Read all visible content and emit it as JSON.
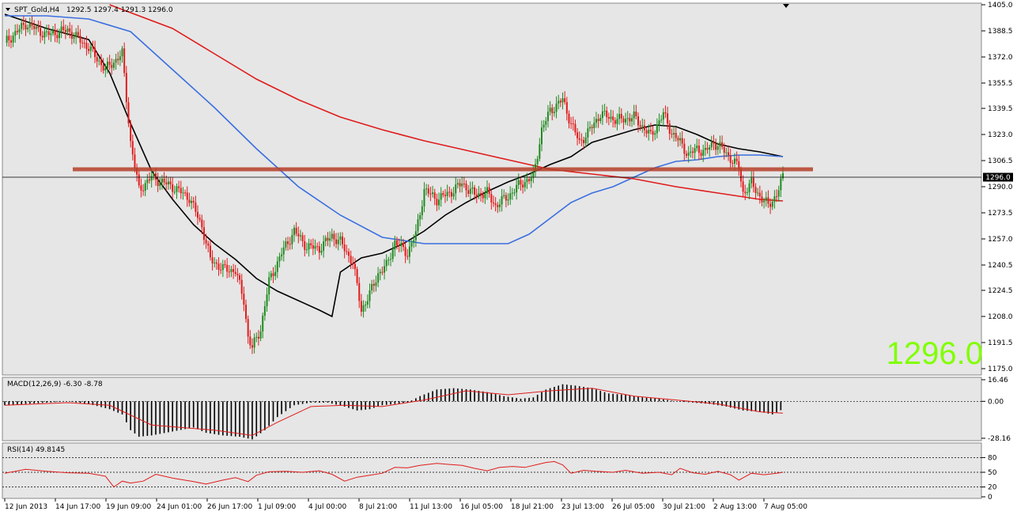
{
  "header": {
    "symbol": "SPT_Gold,H4",
    "ohlc": "1292.5 1297.4 1291.3 1296.0"
  },
  "price_big": "1296.0",
  "current_price_label": "1296.0",
  "colors": {
    "background": "#ffffff",
    "plot_bg": "#e6e6e6",
    "bull": "#1f8a1f",
    "bear": "#e01b1b",
    "ma_short": "#000000",
    "ma_mid": "#3b6fe0",
    "ma_long": "#e01b1b",
    "resistance": "#b5402a",
    "big_price": "#80ff00"
  },
  "macd": {
    "label": "MACD(12,26,9) -6.30 -8.78",
    "ticks": [
      "16.46",
      "0.00",
      "-28.16"
    ]
  },
  "rsi": {
    "label": "RSI(14) 49.8145",
    "ticks": [
      "80",
      "50",
      "20",
      "0"
    ]
  },
  "chart_data": [
    {
      "type": "candlestick",
      "title": "SPT_Gold,H4",
      "x_tick_labels": [
        "12 Jun 2013",
        "14 Jun 17:00",
        "19 Jun 09:00",
        "24 Jun 01:00",
        "26 Jun 17:00",
        "1 Jul 09:00",
        "4 Jul 00:00",
        "8 Jul 21:00",
        "11 Jul 13:00",
        "16 Jul 05:00",
        "18 Jul 21:00",
        "23 Jul 13:00",
        "26 Jul 05:00",
        "30 Jul 21:00",
        "2 Aug 13:00",
        "7 Aug 05:00"
      ],
      "y_tick_labels": [
        "1405.0",
        "1388.5",
        "1372.0",
        "1355.5",
        "1339.5",
        "1323.0",
        "1306.5",
        "1290.0",
        "1273.5",
        "1257.0",
        "1240.5",
        "1224.5",
        "1208.0",
        "1191.5",
        "1175.0"
      ],
      "ylim": [
        1173,
        1405
      ],
      "current_price": 1296.0,
      "resistance_level": 1301.0,
      "price_path": [
        [
          0,
          1381
        ],
        [
          10,
          1393
        ],
        [
          20,
          1386
        ],
        [
          30,
          1389
        ],
        [
          40,
          1378
        ],
        [
          48,
          1364
        ],
        [
          56,
          1374
        ],
        [
          60,
          1318
        ],
        [
          64,
          1288
        ],
        [
          70,
          1296
        ],
        [
          80,
          1290
        ],
        [
          88,
          1283
        ],
        [
          94,
          1265
        ],
        [
          98,
          1244
        ],
        [
          104,
          1238
        ],
        [
          110,
          1237
        ],
        [
          114,
          1218
        ],
        [
          116,
          1195
        ],
        [
          118,
          1188
        ],
        [
          122,
          1200
        ],
        [
          126,
          1230
        ],
        [
          132,
          1248
        ],
        [
          138,
          1262
        ],
        [
          144,
          1252
        ],
        [
          150,
          1251
        ],
        [
          156,
          1259
        ],
        [
          160,
          1255
        ],
        [
          166,
          1242
        ],
        [
          170,
          1212
        ],
        [
          174,
          1222
        ],
        [
          178,
          1235
        ],
        [
          182,
          1240
        ],
        [
          186,
          1255
        ],
        [
          192,
          1248
        ],
        [
          196,
          1260
        ],
        [
          200,
          1288
        ],
        [
          206,
          1282
        ],
        [
          212,
          1286
        ],
        [
          218,
          1292
        ],
        [
          224,
          1285
        ],
        [
          230,
          1286
        ],
        [
          234,
          1278
        ],
        [
          240,
          1284
        ],
        [
          246,
          1292
        ],
        [
          252,
          1296
        ],
        [
          256,
          1326
        ],
        [
          260,
          1338
        ],
        [
          266,
          1345
        ],
        [
          270,
          1330
        ],
        [
          274,
          1318
        ],
        [
          278,
          1324
        ],
        [
          284,
          1336
        ],
        [
          292,
          1332
        ],
        [
          300,
          1334
        ],
        [
          308,
          1322
        ],
        [
          314,
          1336
        ],
        [
          318,
          1324
        ],
        [
          322,
          1318
        ],
        [
          326,
          1310
        ],
        [
          330,
          1314
        ],
        [
          334,
          1312
        ],
        [
          338,
          1318
        ],
        [
          342,
          1314
        ],
        [
          346,
          1308
        ],
        [
          350,
          1302
        ],
        [
          352,
          1286
        ],
        [
          356,
          1292
        ],
        [
          360,
          1284
        ],
        [
          364,
          1278
        ],
        [
          368,
          1285
        ],
        [
          371,
          1296
        ]
      ],
      "moving_averages": [
        {
          "color": "#000000",
          "points": [
            [
              0,
              1399
            ],
            [
              20,
              1390
            ],
            [
              40,
              1383
            ],
            [
              50,
              1362
            ],
            [
              60,
              1330
            ],
            [
              70,
              1300
            ],
            [
              80,
              1282
            ],
            [
              90,
              1266
            ],
            [
              100,
              1254
            ],
            [
              110,
              1244
            ],
            [
              120,
              1232
            ],
            [
              130,
              1224
            ],
            [
              140,
              1218
            ],
            [
              150,
              1212
            ],
            [
              156,
              1208
            ],
            [
              160,
              1236
            ],
            [
              170,
              1245
            ],
            [
              180,
              1248
            ],
            [
              190,
              1254
            ],
            [
              200,
              1262
            ],
            [
              210,
              1272
            ],
            [
              220,
              1280
            ],
            [
              230,
              1287
            ],
            [
              240,
              1293
            ],
            [
              250,
              1298
            ],
            [
              260,
              1304
            ],
            [
              270,
              1309
            ],
            [
              280,
              1318
            ],
            [
              290,
              1322
            ],
            [
              300,
              1326
            ],
            [
              310,
              1329
            ],
            [
              320,
              1328
            ],
            [
              330,
              1323
            ],
            [
              340,
              1317
            ],
            [
              350,
              1314
            ],
            [
              360,
              1312
            ],
            [
              371,
              1309
            ]
          ]
        },
        {
          "color": "#3b6fe0",
          "points": [
            [
              0,
              1398
            ],
            [
              20,
              1398
            ],
            [
              40,
              1396
            ],
            [
              60,
              1388
            ],
            [
              80,
              1364
            ],
            [
              100,
              1340
            ],
            [
              120,
              1314
            ],
            [
              140,
              1290
            ],
            [
              160,
              1272
            ],
            [
              180,
              1258
            ],
            [
              200,
              1254
            ],
            [
              220,
              1254
            ],
            [
              240,
              1254
            ],
            [
              250,
              1260
            ],
            [
              260,
              1270
            ],
            [
              270,
              1280
            ],
            [
              280,
              1286
            ],
            [
              290,
              1290
            ],
            [
              300,
              1296
            ],
            [
              310,
              1302
            ],
            [
              320,
              1306
            ],
            [
              330,
              1307
            ],
            [
              340,
              1309
            ],
            [
              350,
              1310
            ],
            [
              360,
              1310
            ],
            [
              371,
              1309
            ]
          ]
        },
        {
          "color": "#e01b1b",
          "points": [
            [
              50,
              1405
            ],
            [
              80,
              1390
            ],
            [
              100,
              1374
            ],
            [
              120,
              1358
            ],
            [
              140,
              1345
            ],
            [
              160,
              1334
            ],
            [
              180,
              1326
            ],
            [
              200,
              1319
            ],
            [
              220,
              1313
            ],
            [
              240,
              1307
            ],
            [
              260,
              1301
            ],
            [
              280,
              1298
            ],
            [
              300,
              1295
            ],
            [
              320,
              1290
            ],
            [
              340,
              1286
            ],
            [
              360,
              1282
            ],
            [
              371,
              1281
            ]
          ]
        }
      ]
    },
    {
      "type": "histogram",
      "title": "MACD(12,26,9)",
      "main_value": -6.3,
      "signal_value": -8.78,
      "ylim": [
        -28.16,
        16.46
      ],
      "histogram": [
        [
          0,
          -3
        ],
        [
          10,
          -2
        ],
        [
          20,
          -1
        ],
        [
          30,
          0
        ],
        [
          40,
          -2
        ],
        [
          50,
          -6
        ],
        [
          56,
          -10
        ],
        [
          60,
          -22
        ],
        [
          64,
          -27
        ],
        [
          70,
          -26
        ],
        [
          80,
          -23
        ],
        [
          90,
          -20
        ],
        [
          96,
          -24
        ],
        [
          104,
          -26
        ],
        [
          112,
          -27
        ],
        [
          118,
          -29
        ],
        [
          124,
          -22
        ],
        [
          130,
          -12
        ],
        [
          138,
          -3
        ],
        [
          146,
          -1
        ],
        [
          154,
          -1
        ],
        [
          162,
          -4
        ],
        [
          168,
          -7
        ],
        [
          174,
          -6
        ],
        [
          180,
          -3
        ],
        [
          186,
          -2
        ],
        [
          192,
          -1
        ],
        [
          198,
          4
        ],
        [
          206,
          9
        ],
        [
          214,
          10
        ],
        [
          222,
          9
        ],
        [
          230,
          7
        ],
        [
          238,
          4
        ],
        [
          246,
          2
        ],
        [
          252,
          3
        ],
        [
          258,
          9
        ],
        [
          266,
          13
        ],
        [
          272,
          12
        ],
        [
          280,
          10
        ],
        [
          288,
          6
        ],
        [
          296,
          5
        ],
        [
          304,
          3
        ],
        [
          312,
          2
        ],
        [
          320,
          0
        ],
        [
          328,
          -1
        ],
        [
          336,
          -2
        ],
        [
          344,
          -4
        ],
        [
          352,
          -7
        ],
        [
          360,
          -8
        ],
        [
          366,
          -10
        ],
        [
          371,
          -6
        ]
      ],
      "signal": [
        [
          0,
          -3
        ],
        [
          30,
          -1
        ],
        [
          50,
          -3
        ],
        [
          70,
          -18
        ],
        [
          100,
          -22
        ],
        [
          118,
          -26
        ],
        [
          130,
          -16
        ],
        [
          146,
          -4
        ],
        [
          162,
          -3
        ],
        [
          180,
          -4
        ],
        [
          200,
          1
        ],
        [
          220,
          8
        ],
        [
          240,
          5
        ],
        [
          260,
          8
        ],
        [
          280,
          10
        ],
        [
          300,
          4
        ],
        [
          320,
          1
        ],
        [
          340,
          -2
        ],
        [
          360,
          -8
        ],
        [
          371,
          -9
        ]
      ]
    },
    {
      "type": "line",
      "title": "RSI(14)",
      "last_value": 49.8145,
      "ylim": [
        0,
        100
      ],
      "levels": [
        80,
        50,
        20
      ],
      "values": [
        [
          0,
          48
        ],
        [
          10,
          56
        ],
        [
          20,
          52
        ],
        [
          30,
          49
        ],
        [
          40,
          48
        ],
        [
          48,
          42
        ],
        [
          52,
          20
        ],
        [
          56,
          32
        ],
        [
          60,
          28
        ],
        [
          66,
          32
        ],
        [
          72,
          46
        ],
        [
          80,
          38
        ],
        [
          90,
          31
        ],
        [
          96,
          26
        ],
        [
          104,
          34
        ],
        [
          110,
          39
        ],
        [
          116,
          31
        ],
        [
          120,
          44
        ],
        [
          126,
          51
        ],
        [
          134,
          52
        ],
        [
          142,
          50
        ],
        [
          150,
          53
        ],
        [
          156,
          46
        ],
        [
          162,
          32
        ],
        [
          168,
          40
        ],
        [
          174,
          44
        ],
        [
          180,
          48
        ],
        [
          186,
          60
        ],
        [
          192,
          59
        ],
        [
          198,
          64
        ],
        [
          206,
          68
        ],
        [
          212,
          66
        ],
        [
          218,
          64
        ],
        [
          224,
          58
        ],
        [
          230,
          53
        ],
        [
          236,
          60
        ],
        [
          242,
          62
        ],
        [
          248,
          60
        ],
        [
          254,
          66
        ],
        [
          258,
          70
        ],
        [
          262,
          72
        ],
        [
          266,
          65
        ],
        [
          270,
          48
        ],
        [
          276,
          54
        ],
        [
          282,
          52
        ],
        [
          290,
          50
        ],
        [
          296,
          54
        ],
        [
          304,
          48
        ],
        [
          312,
          50
        ],
        [
          318,
          45
        ],
        [
          322,
          58
        ],
        [
          328,
          49
        ],
        [
          334,
          46
        ],
        [
          340,
          52
        ],
        [
          346,
          45
        ],
        [
          350,
          34
        ],
        [
          356,
          48
        ],
        [
          362,
          45
        ],
        [
          368,
          48
        ],
        [
          371,
          50
        ]
      ]
    }
  ]
}
